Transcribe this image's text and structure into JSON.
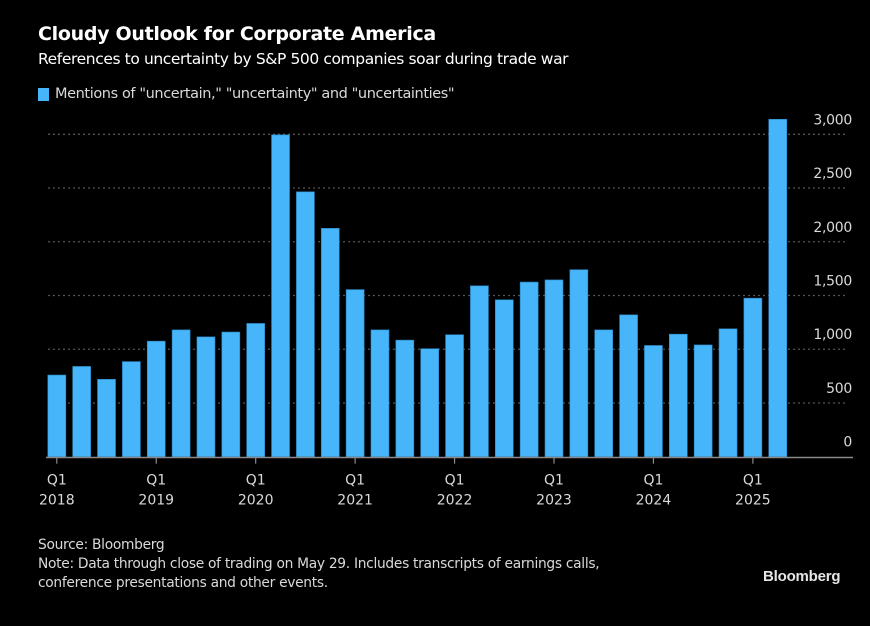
{
  "header": {
    "title": "Cloudy Outlook for Corporate America",
    "subtitle": "References to uncertainty by S&P 500 companies soar during trade war"
  },
  "footer": {
    "source": "Source: Bloomberg",
    "note_line1": "Note: Data through close of trading on May 29. Includes transcripts of earnings calls,",
    "note_line2": "conference presentations and other events.",
    "brand": "Bloomberg"
  },
  "colors": {
    "bar": "#47B5FA",
    "background": "#000000",
    "grid": "#555555",
    "axis": "#8a8a8a",
    "text": "#d9d9d9"
  },
  "chart_data": {
    "type": "bar",
    "title": "Cloudy Outlook for Corporate America",
    "subtitle": "References to uncertainty by S&P 500 companies soar during trade war",
    "xlabel": "",
    "ylabel": "",
    "ylim": [
      0,
      3000
    ],
    "yticks": [
      0,
      500,
      1000,
      1500,
      2000,
      2500,
      3000
    ],
    "ytick_labels": [
      "0",
      "500",
      "1,000",
      "1,500",
      "2,000",
      "2,500",
      "3,000"
    ],
    "y_axis_side": "right",
    "grid": true,
    "legend": {
      "placement": "top-left",
      "entries": [
        "Mentions of \"uncertain,\" \"uncertainty\" and \"uncertainties\""
      ]
    },
    "categories": [
      "Q1 2018",
      "Q2 2018",
      "Q3 2018",
      "Q4 2018",
      "Q1 2019",
      "Q2 2019",
      "Q3 2019",
      "Q4 2019",
      "Q1 2020",
      "Q2 2020",
      "Q3 2020",
      "Q4 2020",
      "Q1 2021",
      "Q2 2021",
      "Q3 2021",
      "Q4 2021",
      "Q1 2022",
      "Q2 2022",
      "Q3 2022",
      "Q4 2022",
      "Q1 2023",
      "Q2 2023",
      "Q3 2023",
      "Q4 2023",
      "Q1 2024",
      "Q2 2024",
      "Q3 2024",
      "Q4 2024",
      "Q1 2025",
      "Q2 2025"
    ],
    "xtick_labels": [
      {
        "index": 0,
        "line1": "Q1",
        "line2": "2018"
      },
      {
        "index": 4,
        "line1": "Q1",
        "line2": "2019"
      },
      {
        "index": 8,
        "line1": "Q1",
        "line2": "2020"
      },
      {
        "index": 12,
        "line1": "Q1",
        "line2": "2021"
      },
      {
        "index": 16,
        "line1": "Q1",
        "line2": "2022"
      },
      {
        "index": 20,
        "line1": "Q1",
        "line2": "2023"
      },
      {
        "index": 24,
        "line1": "Q1",
        "line2": "2024"
      },
      {
        "index": 28,
        "line1": "Q1",
        "line2": "2025"
      }
    ],
    "series": [
      {
        "name": "Mentions of \"uncertain,\" \"uncertainty\" and \"uncertainties\"",
        "values": [
          760,
          840,
          720,
          885,
          1075,
          1180,
          1115,
          1160,
          1240,
          2995,
          2465,
          2125,
          1555,
          1180,
          1085,
          1005,
          1135,
          1590,
          1460,
          1625,
          1645,
          1740,
          1180,
          1320,
          1035,
          1140,
          1040,
          1190,
          1475,
          3140
        ]
      }
    ]
  }
}
